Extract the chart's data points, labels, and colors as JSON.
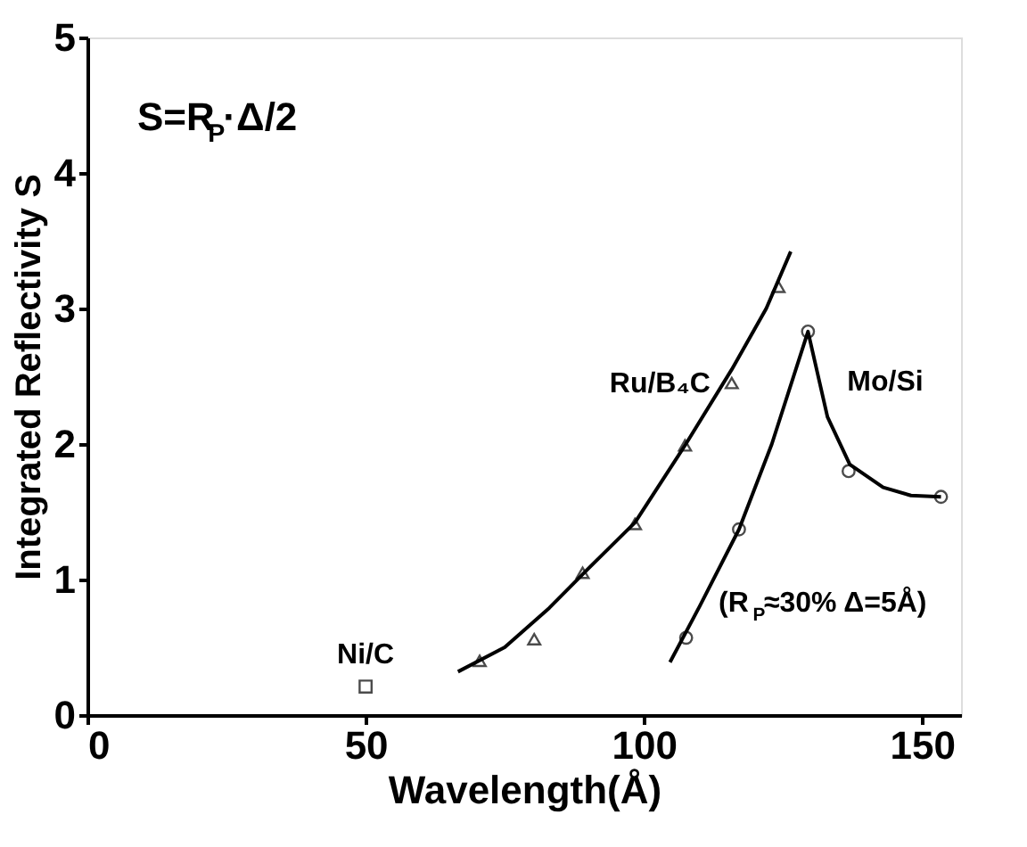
{
  "chart_data": {
    "type": "scatter",
    "xlabel": "Wavelength(Å)",
    "ylabel": "Integrated Reflectivity S",
    "xlim": [
      0,
      157
    ],
    "xticks": [
      0,
      50,
      100,
      150
    ],
    "ylim": [
      0,
      5
    ],
    "yticks": [
      0,
      1,
      2,
      3,
      4,
      5
    ],
    "grid": false,
    "series": [
      {
        "name": "Ni/C",
        "marker": "square",
        "color": "#000000",
        "x": [
          50
        ],
        "values": [
          0.21
        ]
      },
      {
        "name": "Ru/B₄C",
        "marker": "triangle",
        "color": "#000000",
        "x": [
          70.5,
          80.3,
          89.0,
          98.4,
          107.4,
          115.8,
          124.2
        ],
        "values": [
          0.4,
          0.56,
          1.05,
          1.41,
          1.99,
          2.45,
          3.16
        ]
      },
      {
        "type": "line",
        "marker": "none",
        "color": "#000000",
        "x": [
          66.6,
          75,
          83,
          90,
          98.4,
          107.4,
          115.8,
          122,
          126.4
        ],
        "values": [
          0.32,
          0.5,
          0.79,
          1.08,
          1.42,
          1.99,
          2.55,
          3.0,
          3.42
        ]
      },
      {
        "name": "Mo/Si",
        "marker": "circle",
        "color": "#000000",
        "x": [
          107.6,
          117.1,
          129.5,
          136.8,
          153.4
        ],
        "values": [
          0.57,
          1.37,
          2.83,
          1.8,
          1.61
        ]
      },
      {
        "type": "line",
        "marker": "none",
        "color": "#000000",
        "x": [
          104.7,
          110,
          117.1,
          123,
          129.5,
          133,
          137,
          143,
          148,
          153.4
        ],
        "values": [
          0.39,
          0.8,
          1.37,
          2.0,
          2.83,
          2.2,
          1.85,
          1.68,
          1.62,
          1.61
        ]
      }
    ],
    "annotations": [
      "S=R$_{P}$·Δ/2",
      "(R$_{P}$≈30% Δ=5Å)"
    ]
  }
}
